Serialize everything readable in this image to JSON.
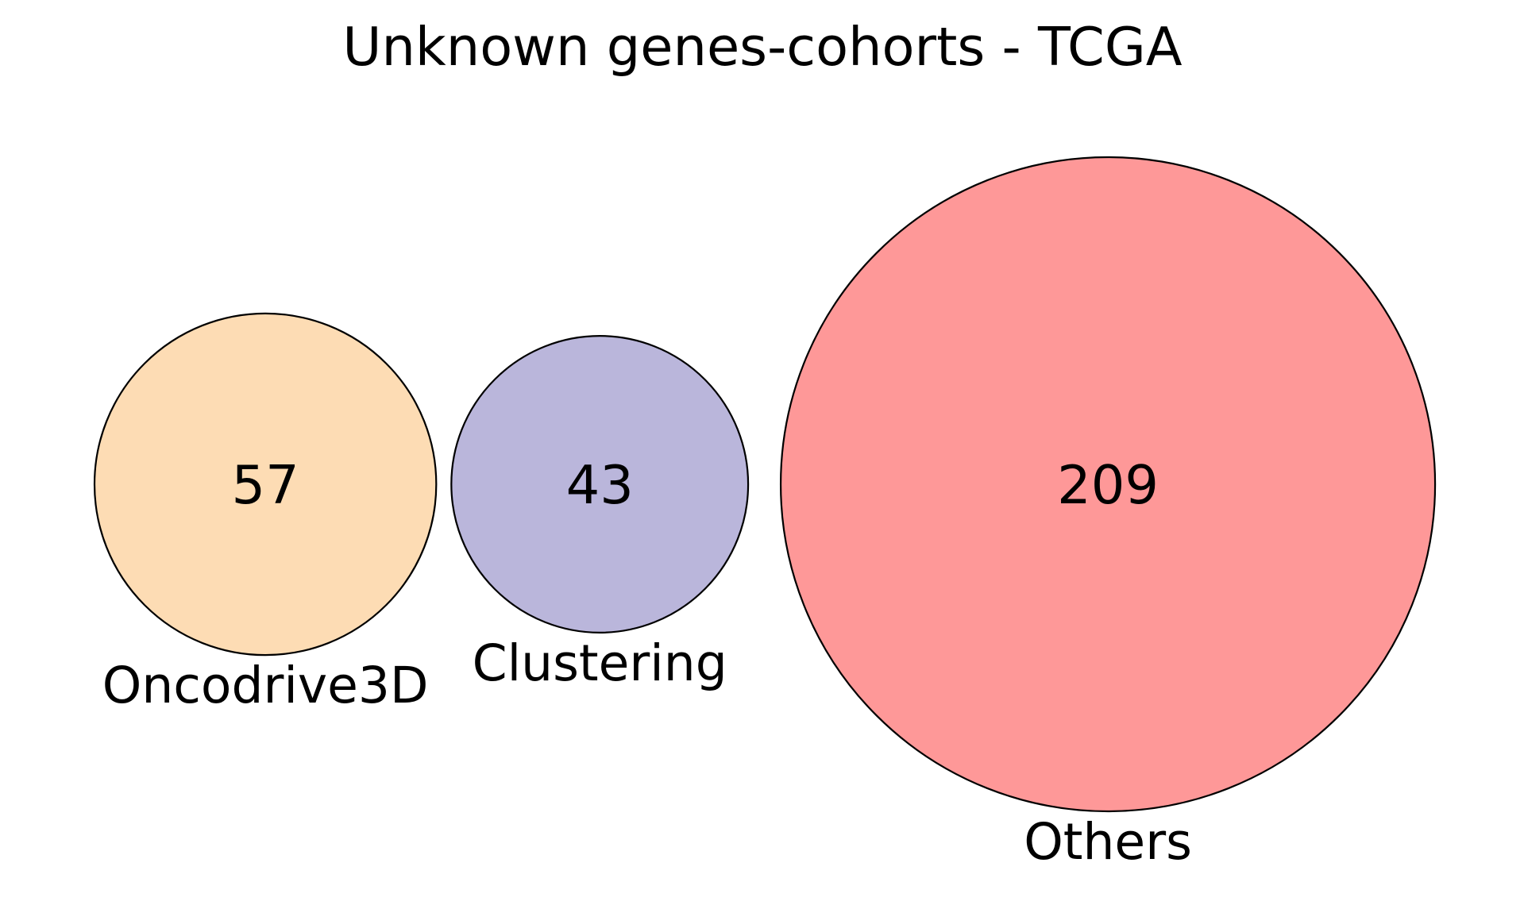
{
  "chart_data": {
    "type": "venn",
    "title": "Unknown genes-cohorts - TCGA",
    "sets": [
      {
        "name": "Oncodrive3D",
        "value": 57,
        "color": "#fddcb4"
      },
      {
        "name": "Clustering",
        "value": 43,
        "color": "#bab6db"
      },
      {
        "name": "Others",
        "value": 209,
        "color": "#fe9898"
      }
    ],
    "overlaps": "none"
  }
}
